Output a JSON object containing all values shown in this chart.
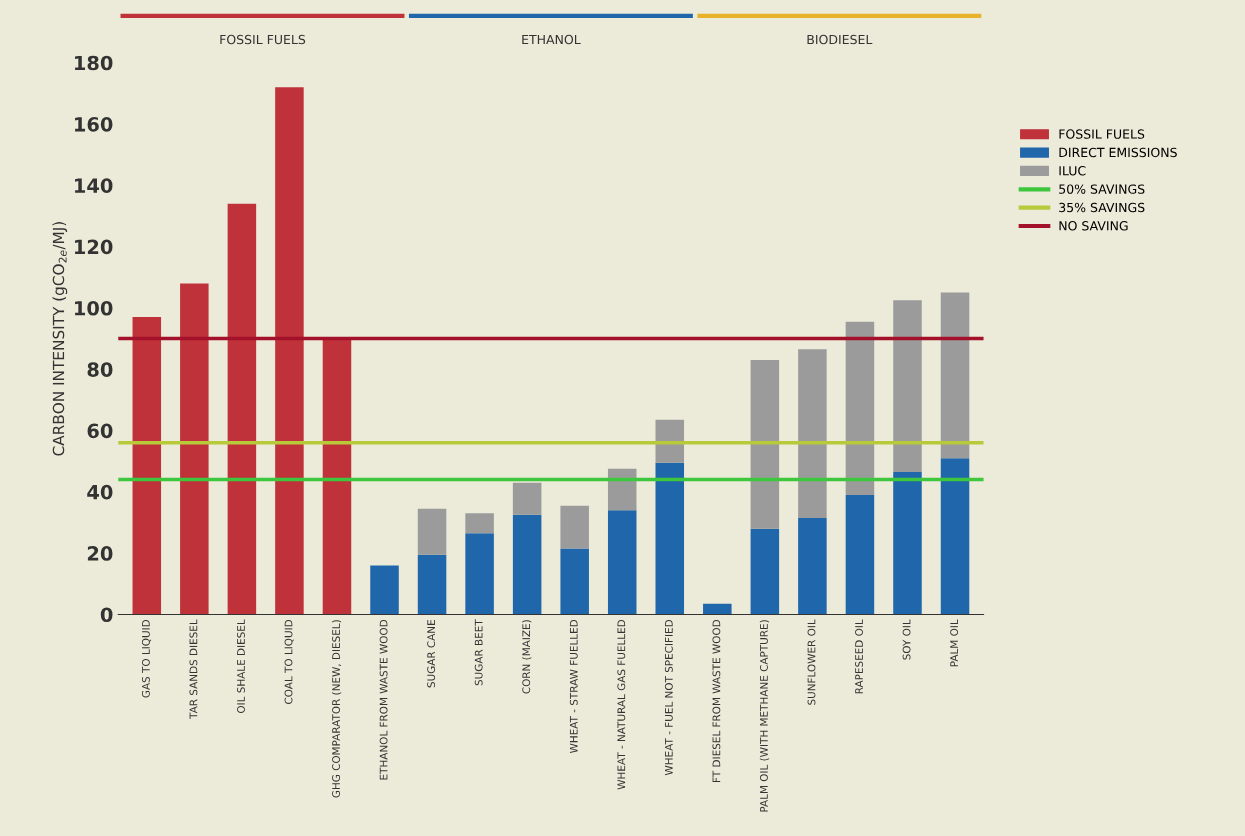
{
  "chart_data": {
    "type": "bar",
    "stacked": true,
    "ylabel": "CARBON INTENSITY (gCO$_{2e}$/MJ)",
    "categories": [
      "GAS TO LIQUID",
      "TAR SANDS DIESEL",
      "OIL SHALE DIESEL",
      "COAL TO LIQUID",
      "GHG COMPARATOR (NEW, DIESEL)",
      "ETHANOL FROM WASTE WOOD",
      "SUGAR CANE",
      "SUGAR BEET",
      "CORN (MAIZE)",
      "WHEAT - STRAW FUELLED",
      "WHEAT - NATURAL GAS FUELLED",
      "WHEAT - FUEL NOT SPECIFIED",
      "FT DIESEL FROM WASTE WOOD",
      "PALM OIL (WITH METHANE CAPTURE)",
      "SUNFLOWER OIL",
      "RAPESEED OIL",
      "SOY OIL",
      "PALM OIL"
    ],
    "series": [
      {
        "name": "FOSSIL FUELS",
        "color": "#c0323a",
        "values": [
          97,
          108,
          134,
          172,
          90,
          null,
          null,
          null,
          null,
          null,
          null,
          null,
          null,
          null,
          null,
          null,
          null,
          null
        ]
      },
      {
        "name": "DIRECT EMISSIONS",
        "color": "#1f66ab",
        "values": [
          null,
          null,
          null,
          null,
          null,
          16,
          19.5,
          26.5,
          32.5,
          21.5,
          34,
          49.5,
          3.5,
          28,
          31.5,
          39,
          46.5,
          51
        ]
      },
      {
        "name": "ILUC",
        "color": "#9b9b9b",
        "values": [
          null,
          null,
          null,
          null,
          null,
          null,
          15,
          6.5,
          10.5,
          14,
          13.5,
          14,
          null,
          55,
          55,
          56.5,
          56,
          54
        ]
      }
    ],
    "ref_lines": [
      {
        "axis": "y",
        "value": 44,
        "label": "50% SAVINGS",
        "color": "#3ec63e"
      },
      {
        "axis": "y",
        "value": 56,
        "label": "35% SAVINGS",
        "color": "#b8c93a"
      },
      {
        "axis": "y",
        "value": 90,
        "label": "NO SAVING",
        "color": "#a3112a"
      }
    ],
    "ylim": [
      0,
      180
    ],
    "yticks": [
      0,
      20,
      40,
      60,
      80,
      100,
      120,
      140,
      160,
      180
    ],
    "grid": false,
    "legend": "right",
    "annotations": [
      "FOSSIL FUELS",
      "ETHANOL",
      "BIODIESEL"
    ]
  }
}
